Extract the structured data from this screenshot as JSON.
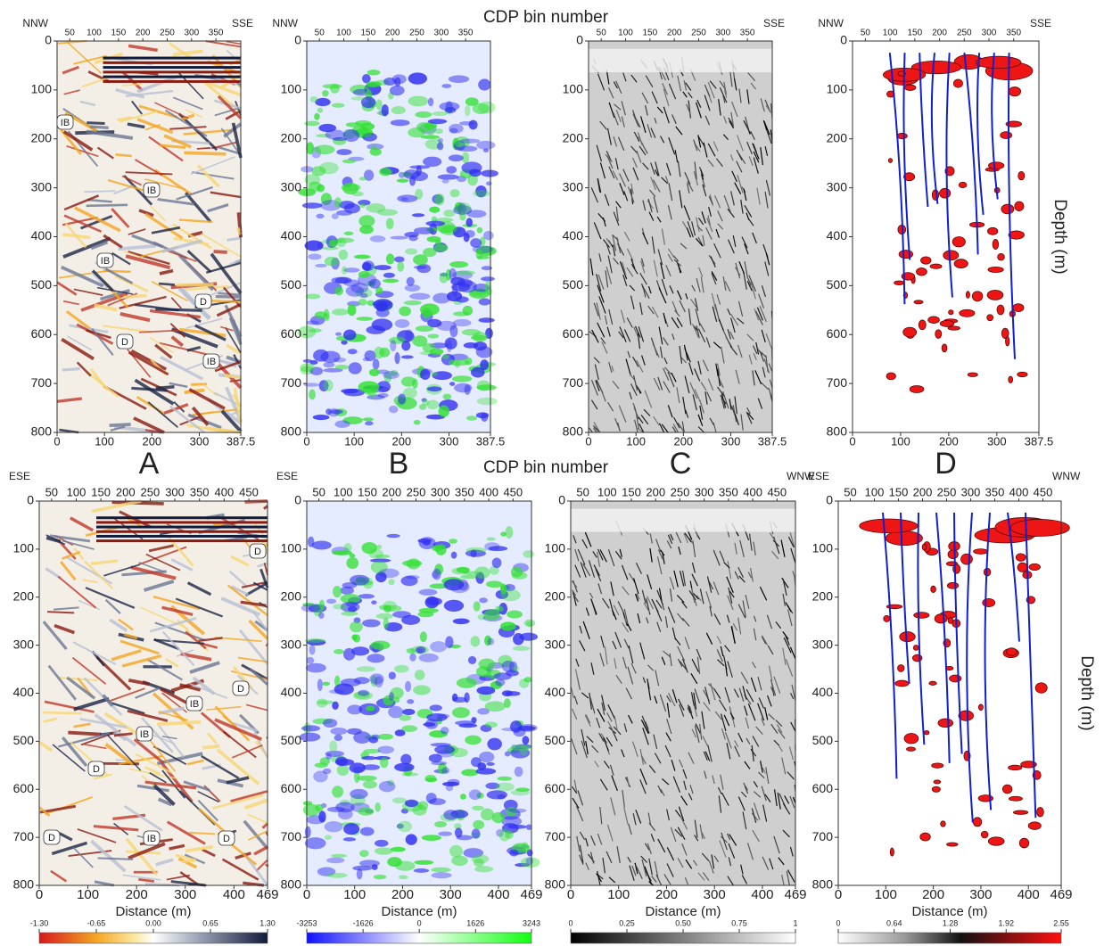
{
  "figure": {
    "rows": [
      {
        "x_axis_title": "CDP bin number",
        "y_axis_title": "Depth (m)",
        "left_direction": "NNW",
        "right_direction": "SSE",
        "cdp_lim": [
          24,
          401
        ],
        "cdp_ticks": [
          50,
          100,
          150,
          200,
          250,
          300,
          350
        ],
        "distance_lim": [
          0,
          387.5
        ],
        "distance_ticks": [
          0,
          100,
          200,
          300,
          387.5
        ],
        "depth_lim": [
          0,
          800
        ],
        "depth_ticks": [
          0,
          100,
          200,
          300,
          400,
          500,
          600,
          700,
          800
        ],
        "annotations": [
          "IB",
          "IB",
          "IB",
          "D",
          "D",
          "IB"
        ]
      },
      {
        "x_axis_title": "CDP bin number",
        "y_axis_title": "Depth (m)",
        "distance_axis_title": "Distance (m)",
        "left_direction": "ESE",
        "right_direction": "WNW",
        "cdp_lim": [
          25,
          488
        ],
        "cdp_ticks": [
          50,
          100,
          150,
          200,
          250,
          300,
          350,
          400,
          450
        ],
        "distance_lim": [
          0,
          469
        ],
        "distance_ticks": [
          0,
          100,
          200,
          300,
          400,
          469
        ],
        "depth_lim": [
          0,
          800
        ],
        "depth_ticks": [
          0,
          100,
          200,
          300,
          400,
          500,
          600,
          700,
          800
        ],
        "annotations": [
          "D",
          "D",
          "IB",
          "IB",
          "D",
          "D",
          "IB",
          "D"
        ]
      }
    ],
    "panel_letters": [
      "A",
      "B",
      "C",
      "D"
    ],
    "colorbars": [
      {
        "lim": [
          -1.3,
          1.3
        ],
        "ticks": [
          {
            "value": -1.3,
            "label": "-1.30"
          },
          {
            "value": -0.65,
            "label": "-0.65"
          },
          {
            "value": 0,
            "label": "0.00"
          },
          {
            "value": 0.65,
            "label": "0.65"
          },
          {
            "value": 1.3,
            "label": "1.30"
          }
        ]
      },
      {
        "lim": [
          -3253,
          3243
        ],
        "ticks": [
          -3253,
          -1626,
          0,
          1626,
          3243
        ]
      },
      {
        "lim": [
          0,
          1
        ],
        "ticks": [
          0,
          {
            "value": 0.25,
            "label": "0.25"
          },
          {
            "value": 0.5,
            "label": "0.50"
          },
          {
            "value": 0.75,
            "label": "0.75"
          },
          1
        ]
      },
      {
        "lim": [
          0,
          2.55
        ],
        "ticks": [
          0,
          {
            "value": 0.64,
            "label": "0.64"
          },
          {
            "value": 1.28,
            "label": "1.28"
          },
          {
            "value": 1.92,
            "label": "1.92"
          },
          {
            "value": 2.55,
            "label": "2.55"
          }
        ]
      }
    ]
  }
}
